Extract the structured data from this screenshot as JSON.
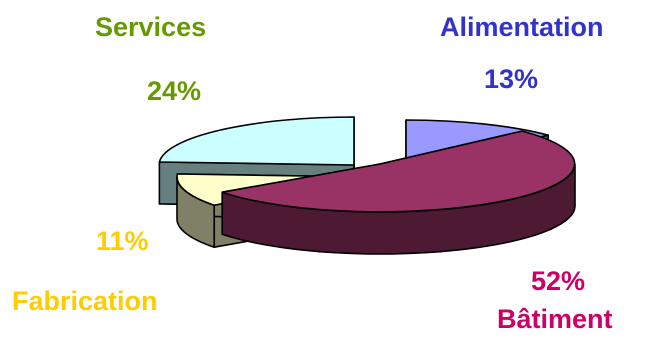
{
  "chart_data": {
    "type": "pie",
    "style": "3d-exploded",
    "slices": [
      {
        "name": "Alimentation",
        "value": 13,
        "label": "13%",
        "color": "#9999ff",
        "side_color": "#4d4d8c",
        "text_color": "#3333cc"
      },
      {
        "name": "Bâtiment",
        "value": 52,
        "label": "52%",
        "color": "#993366",
        "side_color": "#4d1933",
        "text_color": "#cc0066"
      },
      {
        "name": "Fabrication",
        "value": 11,
        "label": "11%",
        "color": "#ffffcc",
        "side_color": "#808066",
        "text_color": "#ffcc00"
      },
      {
        "name": "Services",
        "value": 24,
        "label": "24%",
        "color": "#ccffff",
        "side_color": "#668080",
        "text_color": "#669900"
      }
    ],
    "legend": "none"
  }
}
